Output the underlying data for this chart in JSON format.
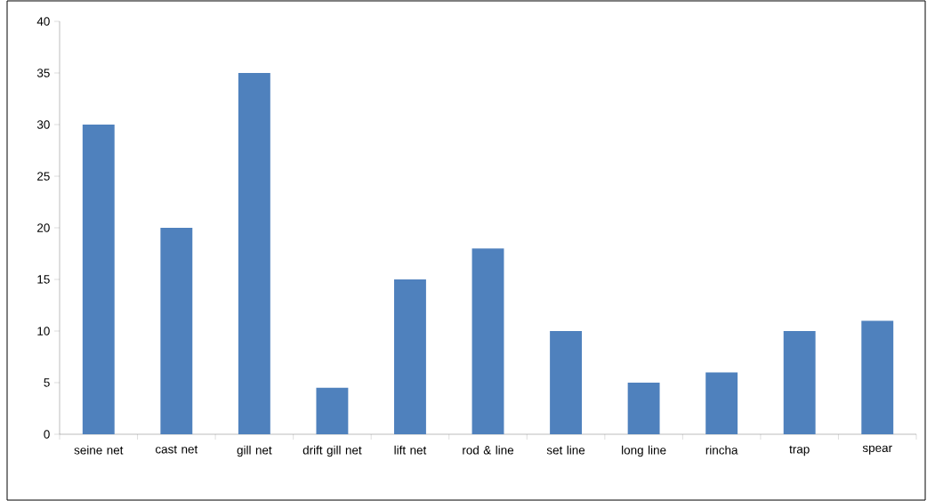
{
  "chart_data": {
    "type": "bar",
    "categories": [
      "seine net",
      "cast net",
      "gill net",
      "drift gill net",
      "lift net",
      "rod & line",
      "set line",
      "long line",
      "rincha",
      "trap",
      "spear"
    ],
    "values": [
      30,
      20,
      35,
      4.5,
      15,
      18,
      10,
      5,
      6,
      10,
      11
    ],
    "color": "#4f81bd",
    "ylim": [
      0,
      40
    ],
    "yticks": [
      0,
      5,
      10,
      15,
      20,
      25,
      30,
      35,
      40
    ]
  }
}
